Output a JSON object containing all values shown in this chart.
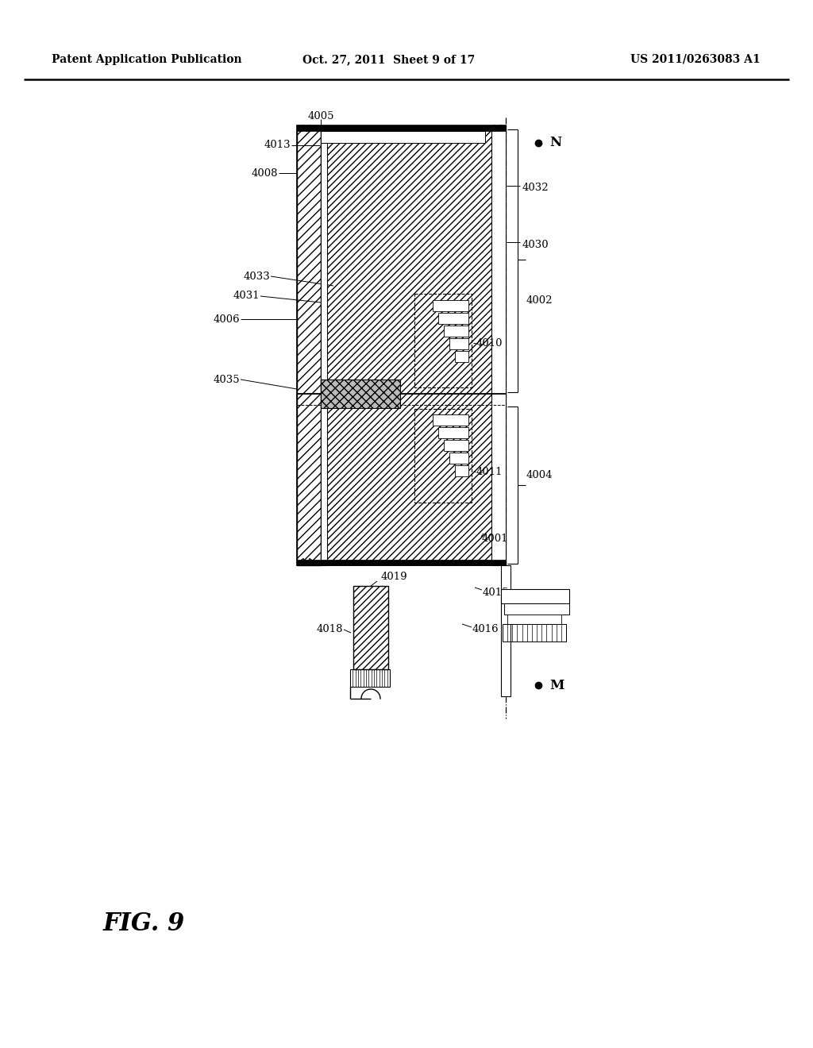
{
  "title_left": "Patent Application Publication",
  "title_center": "Oct. 27, 2011  Sheet 9 of 17",
  "title_right": "US 2011/0263083 A1",
  "fig_label": "FIG. 9",
  "background_color": "#ffffff"
}
